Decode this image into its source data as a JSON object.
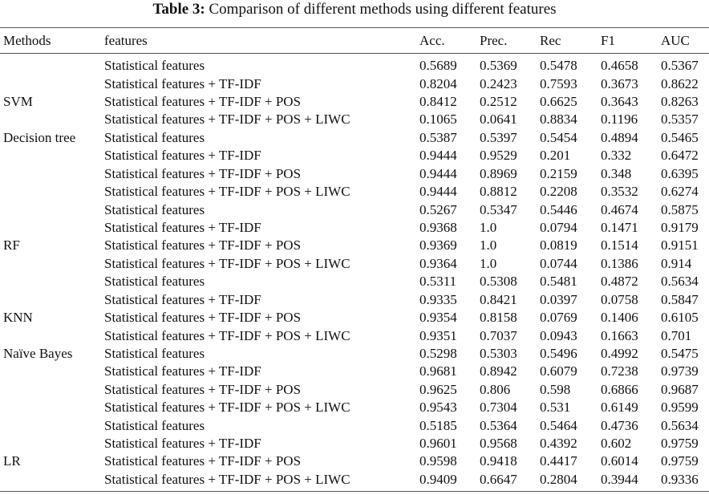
{
  "caption": {
    "label": "Table 3:",
    "text": "Comparison of different methods using different features"
  },
  "header": [
    "Methods",
    "features",
    "Acc.",
    "Prec.",
    "Rec",
    "F1",
    "AUC"
  ],
  "rows": [
    {
      "method": "",
      "features": "Statistical features",
      "acc": "0.5689",
      "prec": "0.5369",
      "rec": "0.5478",
      "f1": "0.4658",
      "auc": "0.5367"
    },
    {
      "method": "",
      "features": "Statistical features + TF-IDF",
      "acc": "0.8204",
      "prec": "0.2423",
      "rec": "0.7593",
      "f1": "0.3673",
      "auc": "0.8622"
    },
    {
      "method": "SVM",
      "features": "Statistical features + TF-IDF + POS",
      "acc": "0.8412",
      "prec": "0.2512",
      "rec": "0.6625",
      "f1": "0.3643",
      "auc": "0.8263"
    },
    {
      "method": "",
      "features": "Statistical features + TF-IDF + POS + LIWC",
      "acc": "0.1065",
      "prec": "0.0641",
      "rec": "0.8834",
      "f1": "0.1196",
      "auc": "0.5357"
    },
    {
      "method": "Decision tree",
      "features": "Statistical features",
      "acc": "0.5387",
      "prec": "0.5397",
      "rec": "0.5454",
      "f1": "0.4894",
      "auc": "0.5465"
    },
    {
      "method": "",
      "features": "Statistical features + TF-IDF",
      "acc": "0.9444",
      "prec": "0.9529",
      "rec": "0.201",
      "f1": "0.332",
      "auc": "0.6472"
    },
    {
      "method": "",
      "features": "Statistical features + TF-IDF + POS",
      "acc": "0.9444",
      "prec": "0.8969",
      "rec": "0.2159",
      "f1": "0.348",
      "auc": "0.6395"
    },
    {
      "method": "",
      "features": "Statistical features + TF-IDF + POS + LIWC",
      "acc": "0.9444",
      "prec": "0.8812",
      "rec": "0.2208",
      "f1": "0.3532",
      "auc": "0.6274"
    },
    {
      "method": "",
      "features": "Statistical features",
      "acc": "0.5267",
      "prec": "0.5347",
      "rec": "0.5446",
      "f1": "0.4674",
      "auc": "0.5875"
    },
    {
      "method": "",
      "features": "Statistical features + TF-IDF",
      "acc": "0.9368",
      "prec": "1.0",
      "rec": "0.0794",
      "f1": "0.1471",
      "auc": "0.9179"
    },
    {
      "method": "RF",
      "features": "Statistical features + TF-IDF + POS",
      "acc": "0.9369",
      "prec": "1.0",
      "rec": "0.0819",
      "f1": "0.1514",
      "auc": "0.9151"
    },
    {
      "method": "",
      "features": "Statistical features + TF-IDF + POS + LIWC",
      "acc": "0.9364",
      "prec": "1.0",
      "rec": "0.0744",
      "f1": "0.1386",
      "auc": "0.914"
    },
    {
      "method": "",
      "features": "Statistical features",
      "acc": "0.5311",
      "prec": "0.5308",
      "rec": "0.5481",
      "f1": "0.4872",
      "auc": "0.5634"
    },
    {
      "method": "",
      "features": "Statistical features + TF-IDF",
      "acc": "0.9335",
      "prec": "0.8421",
      "rec": "0.0397",
      "f1": "0.0758",
      "auc": "0.5847"
    },
    {
      "method": "KNN",
      "features": "Statistical features + TF-IDF + POS",
      "acc": "0.9354",
      "prec": "0.8158",
      "rec": "0.0769",
      "f1": "0.1406",
      "auc": "0.6105"
    },
    {
      "method": "",
      "features": "Statistical features + TF-IDF + POS + LIWC",
      "acc": "0.9351",
      "prec": "0.7037",
      "rec": "0.0943",
      "f1": "0.1663",
      "auc": "0.701"
    },
    {
      "method": "Naïve Bayes",
      "features": "Statistical features",
      "acc": "0.5298",
      "prec": "0.5303",
      "rec": "0.5496",
      "f1": "0.4992",
      "auc": "0.5475"
    },
    {
      "method": "",
      "features": "Statistical features + TF-IDF",
      "acc": "0.9681",
      "prec": "0.8942",
      "rec": "0.6079",
      "f1": "0.7238",
      "auc": "0.9739"
    },
    {
      "method": "",
      "features": "Statistical features + TF-IDF + POS",
      "acc": "0.9625",
      "prec": "0.806",
      "rec": "0.598",
      "f1": "0.6866",
      "auc": "0.9687"
    },
    {
      "method": "",
      "features": "Statistical features + TF-IDF + POS + LIWC",
      "acc": "0.9543",
      "prec": "0.7304",
      "rec": "0.531",
      "f1": "0.6149",
      "auc": "0.9599"
    },
    {
      "method": "",
      "features": "Statistical features",
      "acc": "0.5185",
      "prec": "0.5364",
      "rec": "0.5464",
      "f1": "0.4736",
      "auc": "0.5634"
    },
    {
      "method": "",
      "features": "Statistical features + TF-IDF",
      "acc": "0.9601",
      "prec": "0.9568",
      "rec": "0.4392",
      "f1": "0.602",
      "auc": "0.9759"
    },
    {
      "method": "LR",
      "features": "Statistical features + TF-IDF + POS",
      "acc": "0.9598",
      "prec": "0.9418",
      "rec": "0.4417",
      "f1": "0.6014",
      "auc": "0.9759"
    },
    {
      "method": "",
      "features": "Statistical features + TF-IDF + POS + LIWC",
      "acc": "0.9409",
      "prec": "0.6647",
      "rec": "0.2804",
      "f1": "0.3944",
      "auc": "0.9336"
    }
  ]
}
